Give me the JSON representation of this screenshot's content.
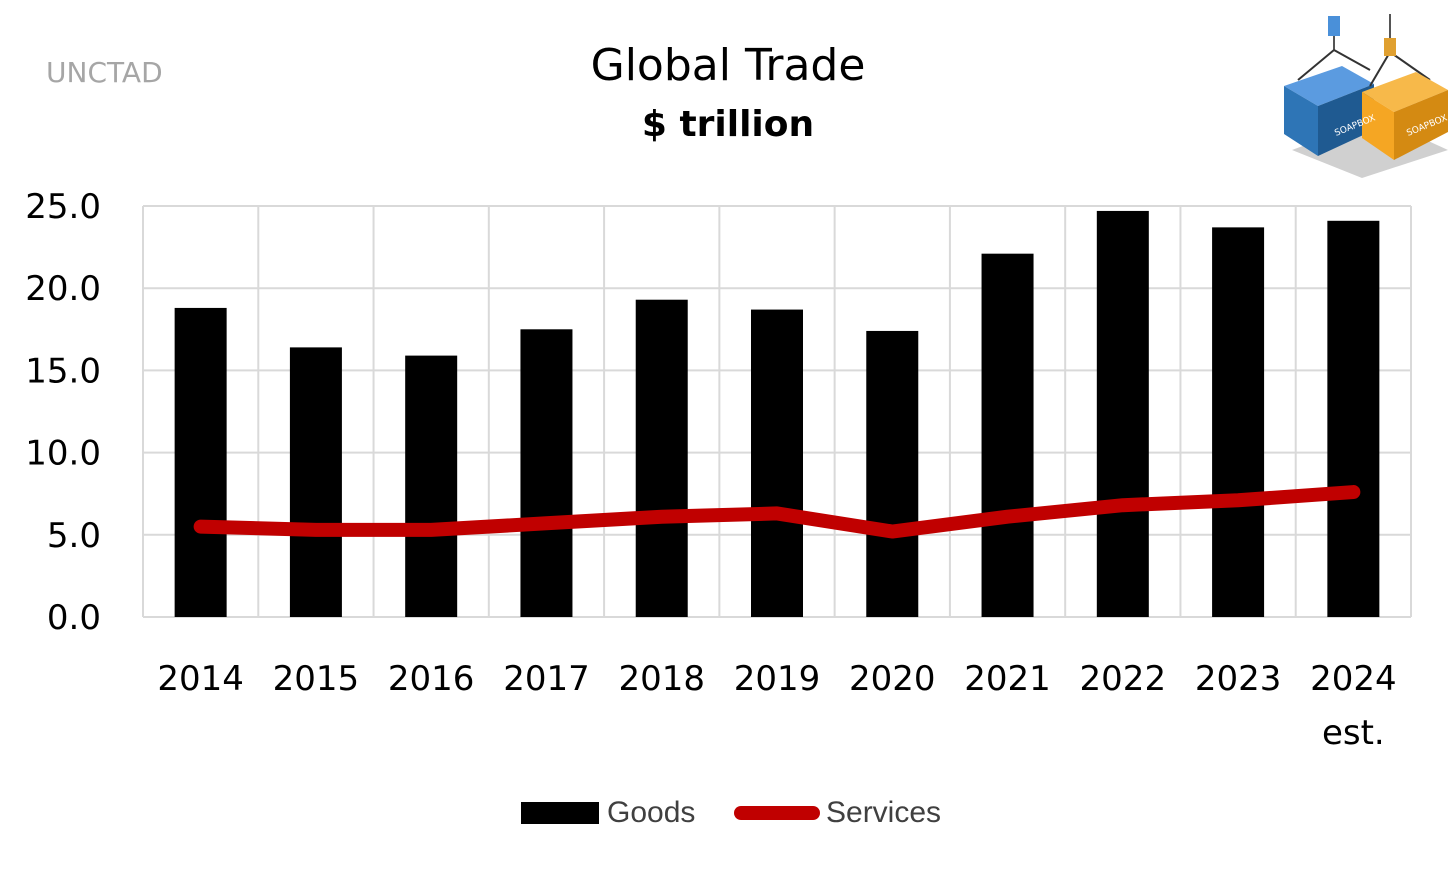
{
  "source_label": "UNCTAD",
  "colors": {
    "goods": "#000000",
    "services": "#c00000",
    "grid": "#d9d9d9"
  },
  "logo": {
    "icon": "soapbox-containers-logo",
    "text": "SOAPBOX",
    "colors": [
      "#2e75b6",
      "#f5a623"
    ]
  },
  "chart_data": {
    "type": "bar",
    "title": "Global Trade",
    "subtitle": "$ trillion",
    "categories": [
      "2014",
      "2015",
      "2016",
      "2017",
      "2018",
      "2019",
      "2020",
      "2021",
      "2022",
      "2023",
      "2024"
    ],
    "category_notes": [
      "",
      "",
      "",
      "",
      "",
      "",
      "",
      "",
      "",
      "",
      "est."
    ],
    "series": [
      {
        "name": "Goods",
        "kind": "bar",
        "values": [
          18.8,
          16.4,
          15.9,
          17.5,
          19.3,
          18.7,
          17.4,
          22.1,
          24.7,
          23.7,
          24.1
        ]
      },
      {
        "name": "Services",
        "kind": "line",
        "values": [
          5.5,
          5.3,
          5.3,
          5.7,
          6.1,
          6.3,
          5.2,
          6.1,
          6.8,
          7.1,
          7.6
        ]
      }
    ],
    "ylim": [
      0,
      25
    ],
    "yticks": [
      0,
      5,
      10,
      15,
      20,
      25
    ],
    "ytick_labels": [
      "0.0",
      "5.0",
      "10.0",
      "15.0",
      "20.0",
      "25.0"
    ],
    "grid": true,
    "legend_position": "bottom"
  }
}
